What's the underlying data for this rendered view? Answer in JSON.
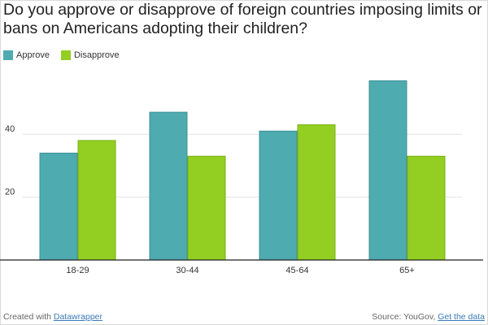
{
  "title": "Do you approve or disapprove of foreign countries imposing limits or bans on Americans adopting their children?",
  "footer": {
    "created_prefix": "Created with ",
    "created_link": "Datawrapper",
    "source_prefix": "Source: YouGov, ",
    "source_link": "Get the data"
  },
  "colors": {
    "approve": "#4eabb0",
    "approve_stroke": "#3f9196",
    "disapprove": "#93ce22",
    "disapprove_stroke": "#79b012",
    "grid": "#e2e2e2",
    "axis": "#222222"
  },
  "chart_data": {
    "type": "bar",
    "categories": [
      "18-29",
      "30-44",
      "45-64",
      "65+"
    ],
    "series": [
      {
        "name": "Approve",
        "values": [
          34,
          47,
          41,
          57
        ]
      },
      {
        "name": "Disapprove",
        "values": [
          38,
          33,
          43,
          33
        ]
      }
    ],
    "y_ticks": [
      20,
      40
    ],
    "ylim": [
      0,
      60
    ],
    "legend_position": "top-left",
    "grid": true
  }
}
